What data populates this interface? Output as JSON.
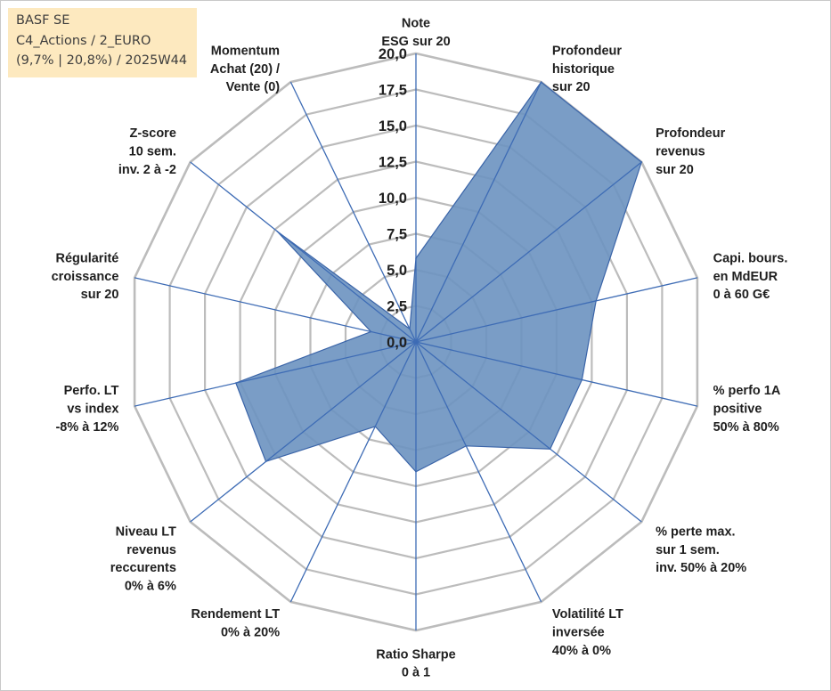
{
  "info": {
    "line1": "BASF SE",
    "line2": "C4_Actions / 2_EURO",
    "line3": "(9,7% | 20,8%) / 2025W44"
  },
  "colors": {
    "fill": "#6c92c0",
    "stroke": "#3a64a8",
    "spoke": "#3e6cb5",
    "grid": "#bcbcbc",
    "box": "#fde9bf"
  },
  "chart_data": {
    "type": "radar",
    "title": "BASF SE",
    "rmin": 0,
    "rmax": 20,
    "rticks": [
      "0,0",
      "2,5",
      "5,0",
      "7,5",
      "10,0",
      "12,5",
      "15,0",
      "17,5",
      "20,0"
    ],
    "axes": [
      {
        "label": [
          "Note",
          "ESG sur 20"
        ],
        "value": 5.8
      },
      {
        "label": [
          "Profondeur",
          "historique",
          "sur 20"
        ],
        "value": 20
      },
      {
        "label": [
          "Profondeur",
          "revenus",
          "sur 20"
        ],
        "value": 20
      },
      {
        "label": [
          "Capi. bours.",
          "en MdEUR",
          "0 à 60 G€"
        ],
        "value": 12.8
      },
      {
        "label": [
          "% perfo 1A",
          "positive",
          "50% à 80%"
        ],
        "value": 11.8
      },
      {
        "label": [
          "% perte max.",
          "sur 1 sem.",
          "inv. 50% à 20%"
        ],
        "value": 11.9
      },
      {
        "label": [
          "Volatilité LT",
          "inversée",
          "40% à 0%"
        ],
        "value": 8.0
      },
      {
        "label": [
          "Ratio Sharpe",
          "0 à 1"
        ],
        "value": 9.0
      },
      {
        "label": [
          "Rendement LT",
          "0% à 20%"
        ],
        "value": 6.5
      },
      {
        "label": [
          "Niveau LT",
          "revenus",
          "reccurents",
          "0% à 6%"
        ],
        "value": 13.3
      },
      {
        "label": [
          "Perfo. LT",
          "vs index",
          "-8% à 12%"
        ],
        "value": 12.8
      },
      {
        "label": [
          "Régularité",
          "croissance",
          "sur 20"
        ],
        "value": 3.2
      },
      {
        "label": [
          "Z-score",
          "10 sem.",
          "inv. 2 à -2"
        ],
        "value": 12.3
      },
      {
        "label": [
          "Momentum",
          "Achat (20) /",
          "Vente (0)"
        ],
        "value": 1.0
      }
    ]
  }
}
